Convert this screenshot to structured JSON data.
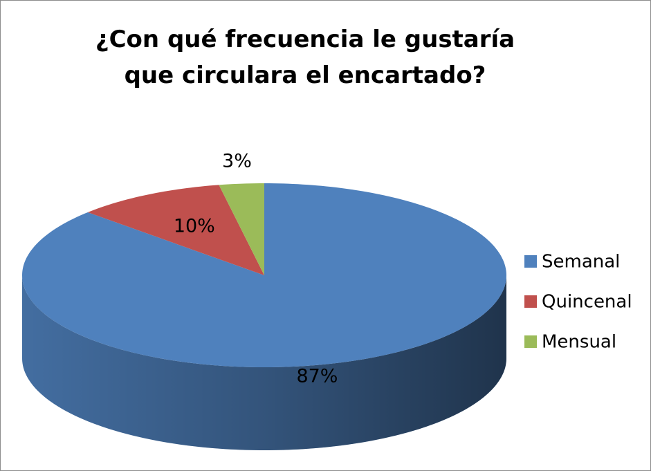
{
  "chart_data": {
    "type": "pie",
    "title": "¿Con qué frecuencia le gustaría que circulara el encartado?",
    "categories": [
      "Semanal",
      "Quincenal",
      "Mensual"
    ],
    "values": [
      87,
      10,
      3
    ],
    "value_labels": [
      "87%",
      "10%",
      "3%"
    ],
    "colors": [
      "#4f81bd",
      "#c0504d",
      "#9bbb59"
    ],
    "legend": "right"
  }
}
